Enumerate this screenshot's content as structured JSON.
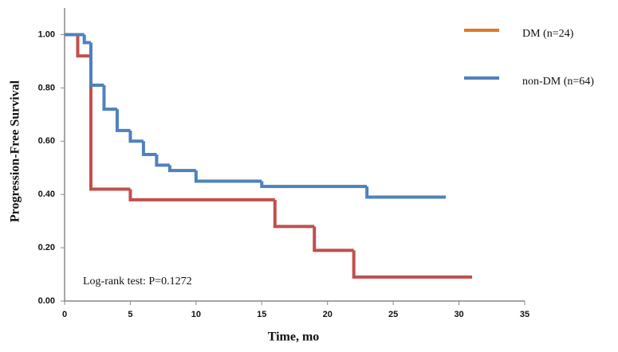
{
  "chart_data": {
    "type": "step",
    "x_label": "Time, mo",
    "y_label": "Progression-Free Survival",
    "annotation": "Log-rank test: P=0.1272",
    "xlim": [
      0,
      35
    ],
    "xticks": [
      0,
      5,
      10,
      15,
      20,
      25,
      30,
      35
    ],
    "ylim": [
      0,
      1.1
    ],
    "yticks": [
      {
        "value": 0,
        "label": "0.00"
      },
      {
        "value": 0.2,
        "label": "0.20"
      },
      {
        "value": 0.4,
        "label": "0.40"
      },
      {
        "value": 0.6,
        "label": "0.60"
      },
      {
        "value": 0.8,
        "label": "0.80"
      },
      {
        "value": 1,
        "label": "1.00"
      }
    ],
    "series": [
      {
        "name": "DM (n=24)",
        "color": "#c0504d",
        "legend_color": "#e0782a",
        "x": [
          0,
          1,
          2,
          5,
          16,
          19,
          22,
          31
        ],
        "values": [
          1,
          0.92,
          0.42,
          0.38,
          0.28,
          0.19,
          0.09,
          0.09
        ]
      },
      {
        "name": "non-DM (n=64)",
        "color": "#4f81bd",
        "legend_color": "#4f81bd",
        "x": [
          0,
          1.5,
          2,
          3,
          4,
          5,
          6,
          7,
          8,
          10,
          15,
          23,
          29
        ],
        "values": [
          1,
          0.97,
          0.81,
          0.72,
          0.64,
          0.6,
          0.55,
          0.51,
          0.49,
          0.45,
          0.43,
          0.39,
          0.39
        ]
      }
    ]
  }
}
